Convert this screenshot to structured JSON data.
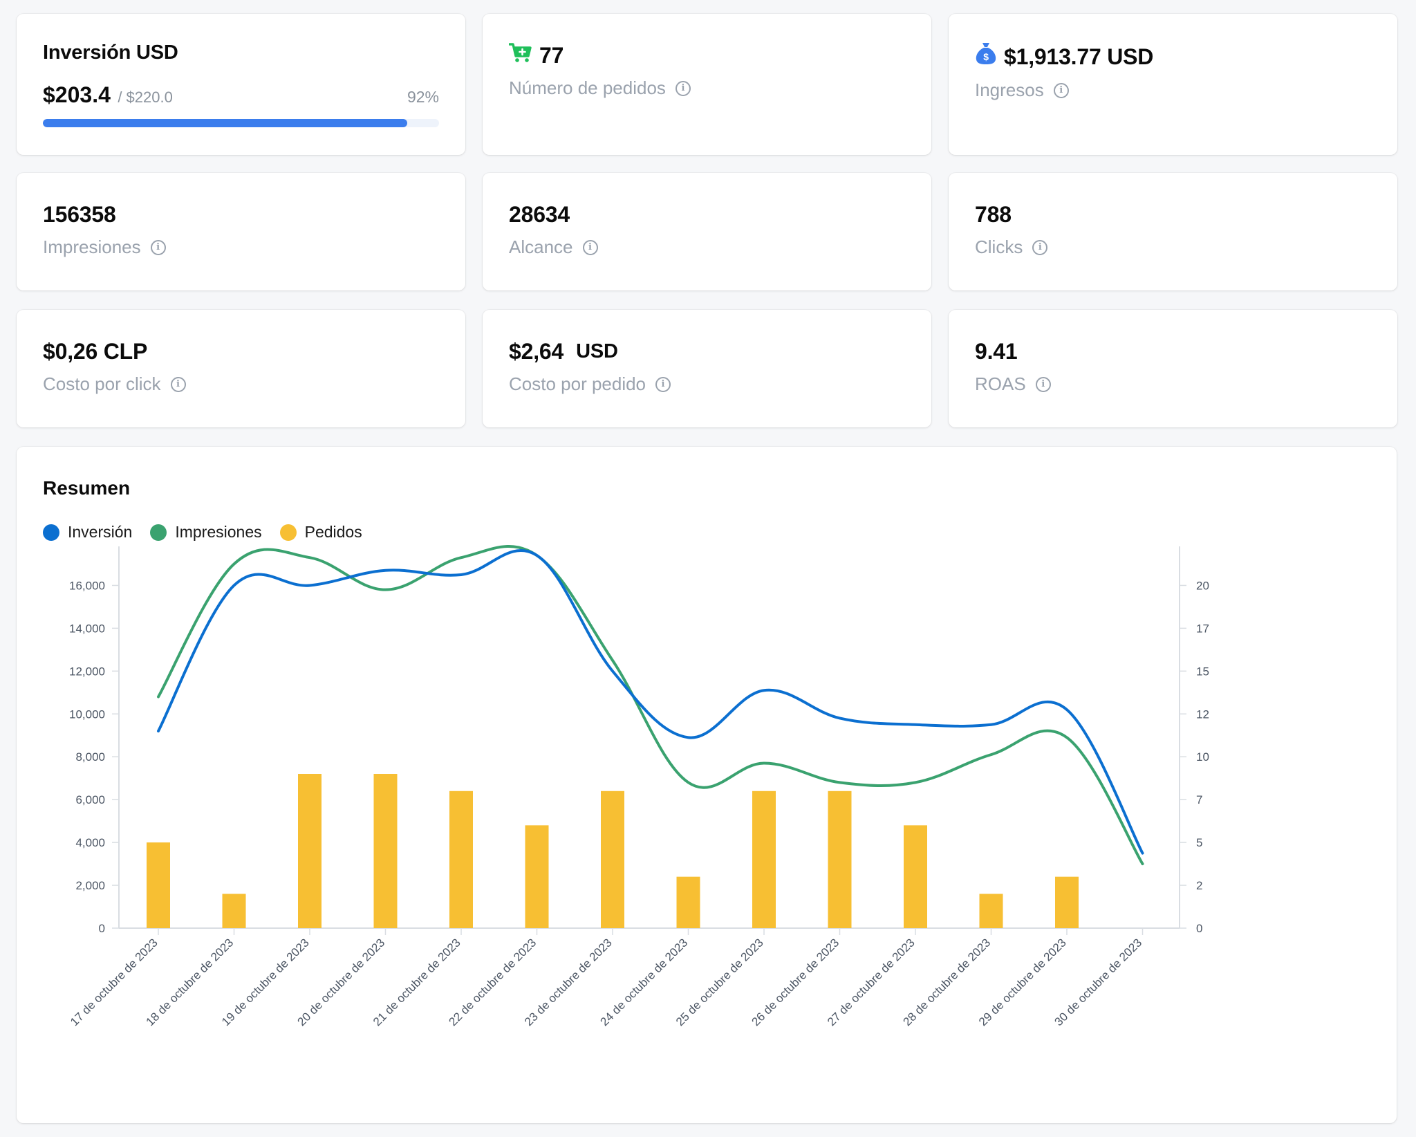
{
  "cards": {
    "investment": {
      "title": "Inversión USD",
      "amount": "$203.4",
      "total": "/ $220.0",
      "percent_label": "92%",
      "progress": 0.92,
      "bar_color": "#3b7ded"
    },
    "orders": {
      "value": "77",
      "label": "Número de pedidos",
      "icon": "cart-plus-icon",
      "icon_color": "#1fbf5a"
    },
    "revenue": {
      "value": "$1,913.77 USD",
      "label": "Ingresos",
      "icon": "money-bag-icon",
      "icon_color": "#3b7ded"
    },
    "impressions": {
      "value": "156358",
      "label": "Impresiones"
    },
    "reach": {
      "value": "28634",
      "label": "Alcance"
    },
    "clicks": {
      "value": "788",
      "label": "Clicks"
    },
    "cpc": {
      "value": "$0,26 CLP",
      "label": "Costo por click"
    },
    "cpo": {
      "value": "$2,64",
      "unit": "USD",
      "label": "Costo por pedido"
    },
    "roas": {
      "value": "9.41",
      "label": "ROAS"
    }
  },
  "chart_data": {
    "type": "bar+line",
    "title": "Resumen",
    "legend": [
      {
        "name": "Inversión",
        "color": "#0b6fd0"
      },
      {
        "name": "Impresiones",
        "color": "#3aa26f"
      },
      {
        "name": "Pedidos",
        "color": "#f7bf33"
      }
    ],
    "legend_position": "top-left",
    "categories": [
      "17 de octubre de 2023",
      "18 de octubre de 2023",
      "19 de octubre de 2023",
      "20 de octubre de 2023",
      "21 de octubre de 2023",
      "22 de octubre de 2023",
      "23 de octubre de 2023",
      "24 de octubre de 2023",
      "25 de octubre de 2023",
      "26 de octubre de 2023",
      "27 de octubre de 2023",
      "28 de octubre de 2023",
      "29 de octubre de 2023",
      "30 de octubre de 2023"
    ],
    "left_axis": {
      "ticks": [
        "0",
        "2,000",
        "4,000",
        "6,000",
        "8,000",
        "10,000",
        "12,000",
        "14,000",
        "16,000"
      ],
      "max": 17500
    },
    "right_axis": {
      "ticks": [
        "0",
        "2",
        "5",
        "7",
        "10",
        "12",
        "15",
        "17",
        "20"
      ],
      "max": 21.875
    },
    "series": [
      {
        "name": "Inversión",
        "type": "line",
        "axis": "left",
        "color": "#0b6fd0",
        "values": [
          9200,
          16000,
          16000,
          16700,
          16500,
          17400,
          12000,
          8900,
          11100,
          9800,
          9500,
          9500,
          10200,
          3500
        ]
      },
      {
        "name": "Impresiones",
        "type": "line",
        "axis": "left",
        "color": "#3aa26f",
        "values": [
          10800,
          17000,
          17300,
          15800,
          17300,
          17400,
          12500,
          6800,
          7700,
          6800,
          6800,
          8100,
          8900,
          3000
        ]
      },
      {
        "name": "Pedidos",
        "type": "bar",
        "axis": "right",
        "color": "#f7bf33",
        "values": [
          5,
          2,
          9,
          9,
          8,
          6,
          8,
          3,
          8,
          8,
          6,
          2,
          3,
          0
        ]
      }
    ],
    "grid": false
  }
}
